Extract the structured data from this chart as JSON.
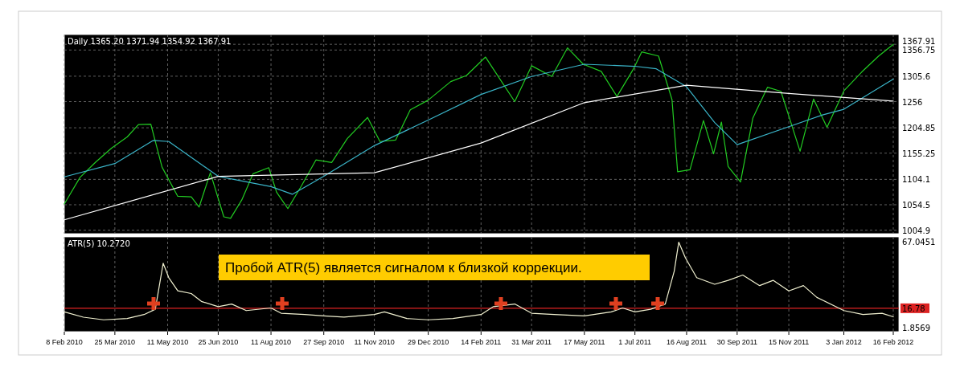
{
  "chart_data": [
    {
      "type": "line",
      "title": "Daily  1365.20 1371.94 1354.92 1367.91",
      "xlim": [
        "2010-02-08",
        "2012-02-21"
      ],
      "ylim": [
        998,
        1387
      ],
      "yticks": [
        1004.9,
        1054.5,
        1104.1,
        1155.25,
        1204.85,
        1256,
        1305.6,
        1356.75,
        1367.91
      ],
      "xticks": [
        {
          "value": "2010-02-08",
          "label": null
        },
        {
          "value": "2010-03-25",
          "label": null
        },
        {
          "value": "2010-05-11",
          "label": null
        },
        {
          "value": "2010-06-25",
          "label": null
        },
        {
          "value": "2010-08-11",
          "label": null
        },
        {
          "value": "2010-09-27",
          "label": null
        },
        {
          "value": "2010-11-11",
          "label": null
        },
        {
          "value": "2010-12-29",
          "label": null
        },
        {
          "value": "2011-02-14",
          "label": null
        },
        {
          "value": "2011-03-31",
          "label": null
        },
        {
          "value": "2011-05-17",
          "label": null
        },
        {
          "value": "2011-07-01",
          "label": null
        },
        {
          "value": "2011-08-16",
          "label": null
        },
        {
          "value": "2011-09-30",
          "label": null
        },
        {
          "value": "2011-11-15",
          "label": null
        },
        {
          "value": "2012-01-03",
          "label": null
        },
        {
          "value": "2012-02-16",
          "label": null
        }
      ],
      "grid": true,
      "tick_labels": "y",
      "series": [
        {
          "color": "#22cc22",
          "x": [
            "2010-02-08",
            "2010-02-22",
            "2010-03-08",
            "2010-03-22",
            "2010-04-05",
            "2010-04-15",
            "2010-04-26",
            "2010-05-06",
            "2010-05-20",
            "2010-06-01",
            "2010-06-08",
            "2010-06-18",
            "2010-06-30",
            "2010-07-06",
            "2010-07-16",
            "2010-07-26",
            "2010-08-09",
            "2010-08-16",
            "2010-08-26",
            "2010-09-07",
            "2010-09-20",
            "2010-10-04",
            "2010-10-18",
            "2010-11-05",
            "2010-11-16",
            "2010-11-30",
            "2010-12-13",
            "2010-12-29",
            "2011-01-18",
            "2011-02-01",
            "2011-02-18",
            "2011-03-01",
            "2011-03-16",
            "2011-03-31",
            "2011-04-18",
            "2011-05-02",
            "2011-05-16",
            "2011-06-01",
            "2011-06-15",
            "2011-06-30",
            "2011-07-07",
            "2011-07-22",
            "2011-08-03",
            "2011-08-08",
            "2011-08-19",
            "2011-08-31",
            "2011-09-09",
            "2011-09-16",
            "2011-09-22",
            "2011-10-03",
            "2011-10-14",
            "2011-10-27",
            "2011-11-08",
            "2011-11-25",
            "2011-12-07",
            "2011-12-19",
            "2012-01-03",
            "2012-01-19",
            "2012-02-03",
            "2012-02-16"
          ],
          "values": [
            1056,
            1108,
            1138,
            1165,
            1187,
            1211,
            1212,
            1128,
            1071,
            1070,
            1050,
            1117,
            1031,
            1028,
            1064,
            1115,
            1127,
            1079,
            1047,
            1091,
            1142,
            1137,
            1184,
            1225,
            1178,
            1181,
            1240,
            1259,
            1295,
            1307,
            1343,
            1306,
            1256,
            1326,
            1305,
            1361,
            1329,
            1315,
            1266,
            1321,
            1353,
            1345,
            1260,
            1119,
            1123,
            1219,
            1154,
            1216,
            1129,
            1099,
            1224,
            1284,
            1276,
            1159,
            1261,
            1206,
            1277,
            1314,
            1345,
            1367.91
          ]
        },
        {
          "color": "#3ab4c8",
          "x": [
            "2010-02-08",
            "2010-03-25",
            "2010-04-28",
            "2010-05-12",
            "2010-06-25",
            "2010-08-11",
            "2010-08-30",
            "2010-09-27",
            "2010-11-11",
            "2010-12-29",
            "2011-02-14",
            "2011-03-31",
            "2011-05-17",
            "2011-07-01",
            "2011-07-20",
            "2011-08-16",
            "2011-09-10",
            "2011-09-30",
            "2011-11-15",
            "2011-12-15",
            "2012-01-03",
            "2012-02-16"
          ],
          "values": [
            1109,
            1135,
            1180,
            1178,
            1110,
            1090,
            1075,
            1110,
            1170,
            1220,
            1270,
            1305,
            1329,
            1325,
            1320,
            1285,
            1215,
            1172,
            1207,
            1230,
            1241,
            1300
          ]
        },
        {
          "color": "#ffffff",
          "x": [
            "2010-02-08",
            "2010-06-25",
            "2010-11-11",
            "2011-02-14",
            "2011-05-17",
            "2011-08-16",
            "2011-11-15",
            "2012-02-16"
          ],
          "values": [
            1025,
            1110,
            1117,
            1175,
            1254,
            1288,
            1272,
            1257
          ]
        }
      ]
    },
    {
      "type": "line",
      "title": "ATR(5) 10.2720",
      "xlim": [
        "2010-02-08",
        "2012-02-21"
      ],
      "ylim": [
        -1,
        71
      ],
      "yticks": [
        1.8569,
        67.0451
      ],
      "xticks": [
        {
          "value": "2010-02-08",
          "label": "8 Feb 2010"
        },
        {
          "value": "2010-03-25",
          "label": "25 Mar 2010"
        },
        {
          "value": "2010-05-11",
          "label": "11 May 2010"
        },
        {
          "value": "2010-06-25",
          "label": "25 Jun 2010"
        },
        {
          "value": "2010-08-11",
          "label": "11 Aug 2010"
        },
        {
          "value": "2010-09-27",
          "label": "27 Sep 2010"
        },
        {
          "value": "2010-11-11",
          "label": "11 Nov 2010"
        },
        {
          "value": "2010-12-29",
          "label": "29 Dec 2010"
        },
        {
          "value": "2011-02-14",
          "label": "14 Feb 2011"
        },
        {
          "value": "2011-03-31",
          "label": "31 Mar 2011"
        },
        {
          "value": "2011-05-17",
          "label": "17 May 2011"
        },
        {
          "value": "2011-07-01",
          "label": "1 Jul 2011"
        },
        {
          "value": "2011-08-16",
          "label": "16 Aug 2011"
        },
        {
          "value": "2011-09-30",
          "label": "30 Sep 2011"
        },
        {
          "value": "2011-11-15",
          "label": "15 Nov 2011"
        },
        {
          "value": "2012-01-03",
          "label": "3 Jan 2012"
        },
        {
          "value": "2012-02-16",
          "label": "16 Feb 2012"
        }
      ],
      "grid": "x",
      "annotations": [
        "Пробой ATR(5) является сигналом к близкой коррекции."
      ],
      "ref_lines": [
        {
          "axis": "y",
          "value": 16.78,
          "label": "16.78",
          "color": "#dd2222"
        }
      ],
      "series": [
        {
          "color": "#f0f0d0",
          "x": [
            "2010-02-08",
            "2010-02-25",
            "2010-03-15",
            "2010-04-05",
            "2010-04-20",
            "2010-04-30",
            "2010-05-07",
            "2010-05-12",
            "2010-05-20",
            "2010-06-01",
            "2010-06-10",
            "2010-06-25",
            "2010-07-07",
            "2010-07-20",
            "2010-08-11",
            "2010-08-20",
            "2010-09-10",
            "2010-09-27",
            "2010-10-15",
            "2010-11-11",
            "2010-11-20",
            "2010-12-10",
            "2010-12-29",
            "2011-01-20",
            "2011-02-14",
            "2011-02-25",
            "2011-03-16",
            "2011-03-31",
            "2011-04-20",
            "2011-05-17",
            "2011-06-10",
            "2011-06-20",
            "2011-07-01",
            "2011-07-15",
            "2011-07-28",
            "2011-08-05",
            "2011-08-09",
            "2011-08-15",
            "2011-08-25",
            "2011-09-10",
            "2011-09-22",
            "2011-10-05",
            "2011-10-20",
            "2011-11-01",
            "2011-11-15",
            "2011-11-28",
            "2011-12-10",
            "2012-01-03",
            "2012-01-20",
            "2012-02-06",
            "2012-02-16"
          ],
          "values": [
            14,
            10,
            8,
            9,
            12,
            16,
            51,
            40,
            30,
            28,
            22,
            18,
            20,
            15,
            17,
            13,
            12,
            11,
            10,
            12,
            14,
            9,
            8,
            9,
            12,
            18,
            20,
            13,
            12,
            11,
            14,
            17,
            14,
            16,
            20,
            45,
            67,
            55,
            40,
            35,
            38,
            42,
            34,
            38,
            30,
            34,
            25,
            15,
            12,
            13,
            10.272
          ]
        }
      ]
    }
  ]
}
